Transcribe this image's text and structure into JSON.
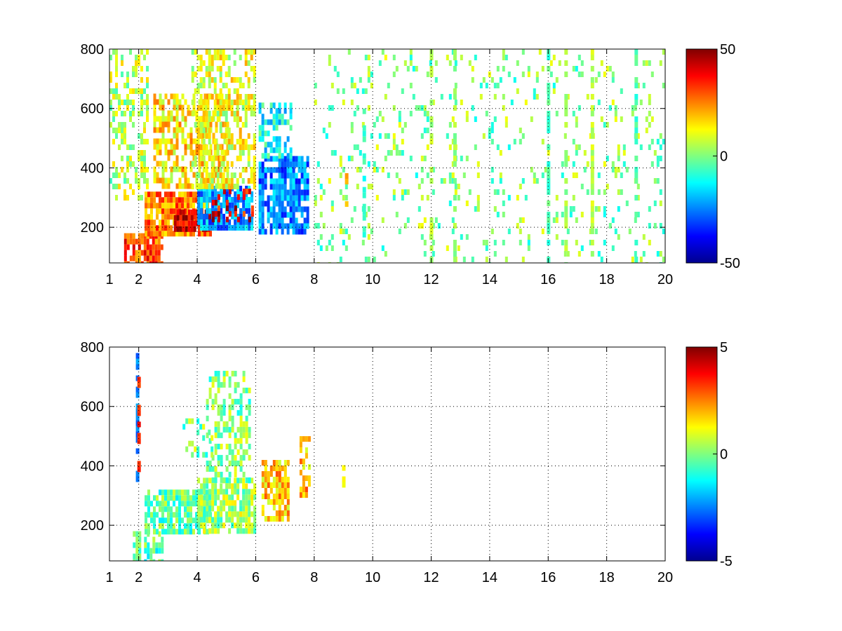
{
  "colormap": {
    "name": "jet",
    "stops": [
      "#00008f",
      "#0000ff",
      "#00ffff",
      "#ffff00",
      "#ff0000",
      "#800000"
    ]
  },
  "chart_data": [
    {
      "type": "heatmap",
      "title": "",
      "xlabel": "",
      "ylabel": "",
      "xlim": [
        1,
        20
      ],
      "ylim": [
        80,
        800
      ],
      "x_ticks": [
        1,
        2,
        4,
        6,
        8,
        10,
        12,
        14,
        16,
        18,
        20
      ],
      "x_tick_labels": [
        "1",
        "2",
        "4",
        "6",
        "8",
        "10",
        "12",
        "14",
        "16",
        "18",
        "20"
      ],
      "y_ticks": [
        200,
        400,
        600,
        800
      ],
      "y_tick_labels": [
        "200",
        "400",
        "600",
        "800"
      ],
      "grid": true,
      "grid_style": "dotted",
      "colorbar": {
        "range": [
          -50,
          50
        ],
        "tick_values": [
          50,
          0,
          -50
        ],
        "tick_labels": [
          "50",
          "0",
          "-50"
        ]
      },
      "regions": [
        {
          "x": [
            1.5,
            2.8
          ],
          "y": [
            80,
            180
          ],
          "value": 30,
          "density": 0.8
        },
        {
          "x": [
            2.2,
            4.5
          ],
          "y": [
            170,
            320
          ],
          "value": 25,
          "density": 0.9
        },
        {
          "x": [
            3.2,
            4.6
          ],
          "y": [
            190,
            260
          ],
          "value": 42,
          "density": 0.9
        },
        {
          "x": [
            4.0,
            5.9
          ],
          "y": [
            200,
            340
          ],
          "value": -22,
          "density": 0.85
        },
        {
          "x": [
            4.5,
            5.9
          ],
          "y": [
            220,
            330
          ],
          "value": 40,
          "density": 0.4
        },
        {
          "x": [
            2.5,
            5.0
          ],
          "y": [
            330,
            650
          ],
          "value": 15,
          "density": 0.6
        },
        {
          "x": [
            3.8,
            6.0
          ],
          "y": [
            340,
            800
          ],
          "value": 10,
          "density": 0.5
        },
        {
          "x": [
            6.1,
            7.8
          ],
          "y": [
            180,
            440
          ],
          "value": -25,
          "density": 0.8
        },
        {
          "x": [
            6.1,
            7.2
          ],
          "y": [
            440,
            620
          ],
          "value": -12,
          "density": 0.55
        },
        {
          "x": [
            1.0,
            2.3
          ],
          "y": [
            300,
            800
          ],
          "value": 5,
          "density": 0.4
        },
        {
          "x": [
            8.0,
            20.0
          ],
          "y": [
            80,
            800
          ],
          "value": 0,
          "density": 0.1
        }
      ],
      "streaks": [
        {
          "x": 9.1,
          "y": [
            280,
            420
          ],
          "value": 20
        },
        {
          "x": 9.7,
          "y": [
            180,
            600
          ],
          "value": -8
        },
        {
          "x": 12.0,
          "y": [
            80,
            800
          ],
          "value": 5
        },
        {
          "x": 12.8,
          "y": [
            80,
            800
          ],
          "value": 3
        },
        {
          "x": 16.0,
          "y": [
            80,
            800
          ],
          "value": -5
        },
        {
          "x": 16.6,
          "y": [
            80,
            800
          ],
          "value": 3
        },
        {
          "x": 17.5,
          "y": [
            80,
            800
          ],
          "value": 6
        },
        {
          "x": 19.0,
          "y": [
            80,
            800
          ],
          "value": -5
        }
      ]
    },
    {
      "type": "heatmap",
      "title": "",
      "xlabel": "",
      "ylabel": "",
      "xlim": [
        1,
        20
      ],
      "ylim": [
        80,
        800
      ],
      "x_ticks": [
        1,
        2,
        4,
        6,
        8,
        10,
        12,
        14,
        16,
        18,
        20
      ],
      "x_tick_labels": [
        "1",
        "2",
        "4",
        "6",
        "8",
        "10",
        "12",
        "14",
        "16",
        "18",
        "20"
      ],
      "y_ticks": [
        200,
        400,
        600,
        800
      ],
      "y_tick_labels": [
        "200",
        "400",
        "600",
        "800"
      ],
      "grid": true,
      "grid_style": "dotted",
      "colorbar": {
        "range": [
          -5,
          5
        ],
        "tick_values": [
          5,
          0,
          -5
        ],
        "tick_labels": [
          "5",
          "0",
          "-5"
        ]
      },
      "regions": [
        {
          "x": [
            1.8,
            2.8
          ],
          "y": [
            80,
            180
          ],
          "value": -0.5,
          "density": 0.55
        },
        {
          "x": [
            2.2,
            4.5
          ],
          "y": [
            170,
            320
          ],
          "value": -0.3,
          "density": 0.75
        },
        {
          "x": [
            4.0,
            6.0
          ],
          "y": [
            180,
            360
          ],
          "value": 0.3,
          "density": 0.8
        },
        {
          "x": [
            4.3,
            5.8
          ],
          "y": [
            360,
            720
          ],
          "value": 0.0,
          "density": 0.45
        },
        {
          "x": [
            6.2,
            7.1
          ],
          "y": [
            230,
            420
          ],
          "value": 1.8,
          "density": 0.75
        },
        {
          "x": [
            7.5,
            7.8
          ],
          "y": [
            300,
            500
          ],
          "value": 2.0,
          "density": 0.5
        },
        {
          "x": [
            3.5,
            4.5
          ],
          "y": [
            430,
            560
          ],
          "value": 0.0,
          "density": 0.3
        }
      ],
      "streaks": [
        {
          "x": 1.95,
          "y": [
            350,
            780
          ],
          "value": -2.5
        },
        {
          "x": 2.0,
          "y": [
            380,
            700
          ],
          "value": 3.5
        },
        {
          "x": 9.0,
          "y": [
            310,
            440
          ],
          "value": 1.5
        }
      ]
    }
  ]
}
